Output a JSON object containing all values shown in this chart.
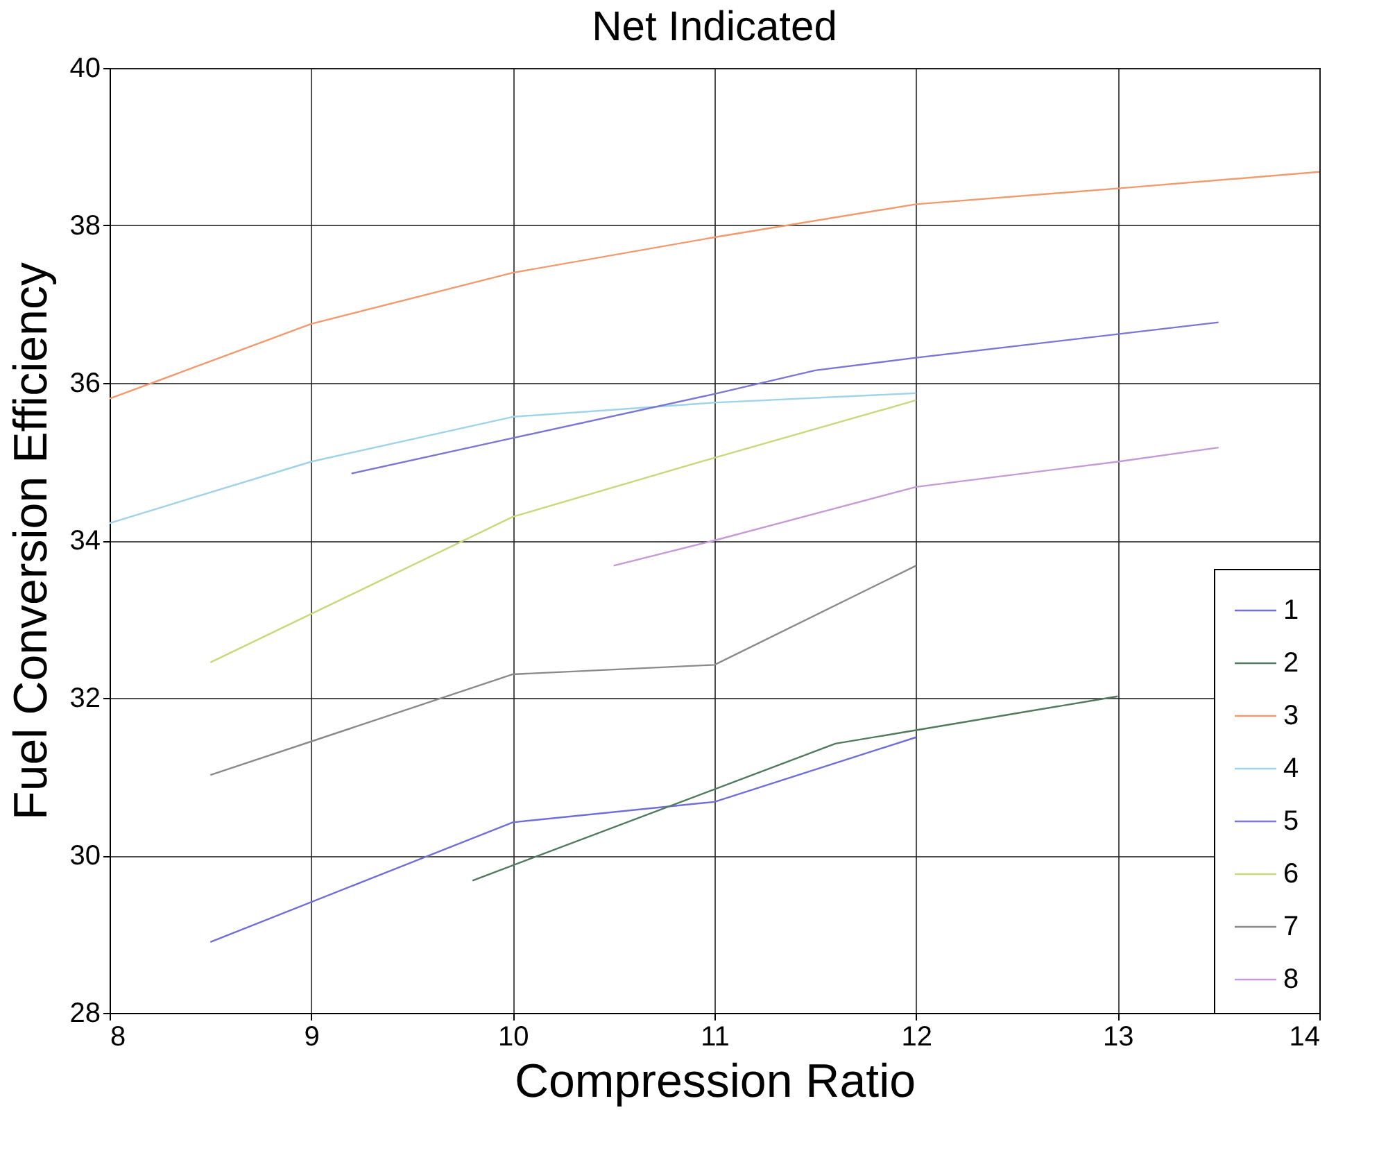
{
  "chart_data": {
    "type": "line",
    "title": "Net Indicated",
    "xlabel": "Compression Ratio",
    "ylabel": "Fuel Conversion Efficiency",
    "xlim": [
      8,
      14
    ],
    "xticks": [
      8,
      9,
      10,
      11,
      12,
      13,
      14
    ],
    "ylim": [
      28,
      40
    ],
    "yticks": [
      28,
      30,
      32,
      34,
      36,
      38,
      40
    ],
    "grid": true,
    "legend": "bottom right",
    "marker": "none",
    "line_style": "solid",
    "series": [
      {
        "name": "1",
        "color": "#6f6fd8",
        "x": [
          8.5,
          10,
          11,
          12
        ],
        "values": [
          28.9,
          30.42,
          30.68,
          31.5
        ]
      },
      {
        "name": "2",
        "color": "#4f7a5c",
        "x": [
          9.8,
          11.6,
          12,
          13
        ],
        "values": [
          29.68,
          31.42,
          31.59,
          32.02
        ]
      },
      {
        "name": "3",
        "color": "#f29a6e",
        "x": [
          8,
          9,
          10,
          11,
          12,
          13,
          14
        ],
        "values": [
          35.8,
          36.75,
          37.4,
          37.85,
          38.27,
          38.47,
          38.68
        ]
      },
      {
        "name": "4",
        "color": "#9fd3ea",
        "x": [
          8,
          9,
          10,
          11,
          12
        ],
        "values": [
          34.22,
          35.0,
          35.57,
          35.75,
          35.87
        ]
      },
      {
        "name": "5",
        "color": "#7a76d4",
        "x": [
          9.2,
          10,
          11,
          11.5,
          12,
          13.5
        ],
        "values": [
          34.85,
          35.3,
          35.86,
          36.16,
          36.32,
          36.77
        ]
      },
      {
        "name": "6",
        "color": "#c8d87a",
        "x": [
          8.5,
          10,
          11,
          12
        ],
        "values": [
          32.45,
          34.3,
          35.05,
          35.78
        ]
      },
      {
        "name": "7",
        "color": "#8a8a8a",
        "x": [
          8.5,
          10,
          11,
          12
        ],
        "values": [
          31.02,
          32.3,
          32.42,
          33.68
        ]
      },
      {
        "name": "8",
        "color": "#c69ad6",
        "x": [
          10.5,
          11,
          12,
          13,
          13.5
        ],
        "values": [
          33.68,
          34.0,
          34.68,
          35.0,
          35.18
        ]
      }
    ]
  }
}
